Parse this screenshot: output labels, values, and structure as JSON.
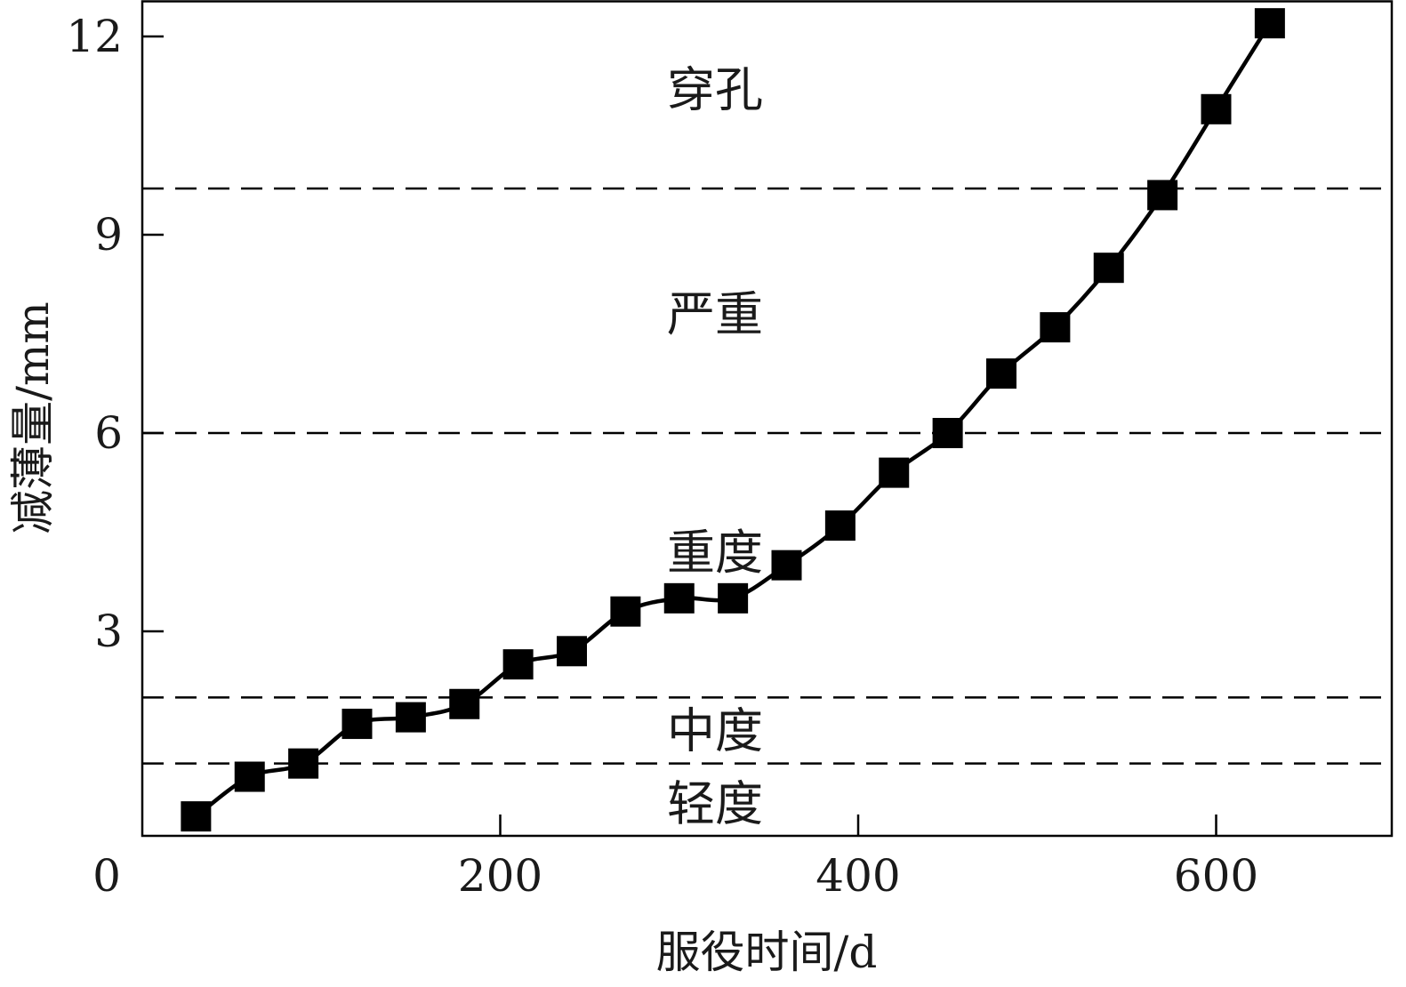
{
  "chart_data": {
    "type": "line",
    "title": "",
    "xlabel": "服役时间/d",
    "ylabel": "减薄量/mm",
    "xlim": [
      0,
      700
    ],
    "ylim": [
      -0.2,
      12.5
    ],
    "x_ticks": [
      0,
      200,
      400,
      600
    ],
    "y_ticks": [
      3,
      6,
      9,
      12
    ],
    "x_tick_labels": [
      "0",
      "200",
      "400",
      "600"
    ],
    "y_tick_labels": [
      "3",
      "6",
      "9",
      "12"
    ],
    "grid": false,
    "series": [
      {
        "name": "",
        "color": "#000000",
        "marker": "square",
        "points": [
          [
            30,
            0.2
          ],
          [
            60,
            0.8
          ],
          [
            90,
            1.0
          ],
          [
            120,
            1.6
          ],
          [
            150,
            1.7
          ],
          [
            180,
            1.9
          ],
          [
            210,
            2.5
          ],
          [
            240,
            2.7
          ],
          [
            270,
            3.3
          ],
          [
            300,
            3.5
          ],
          [
            330,
            3.5
          ],
          [
            360,
            4.0
          ],
          [
            390,
            4.6
          ],
          [
            420,
            5.4
          ],
          [
            450,
            6.0
          ],
          [
            480,
            6.9
          ],
          [
            510,
            7.6
          ],
          [
            540,
            8.5
          ],
          [
            570,
            9.6
          ],
          [
            600,
            10.9
          ],
          [
            630,
            12.2
          ]
        ]
      }
    ],
    "thresholds": [
      1.0,
      2.0,
      6.0,
      9.7
    ],
    "zones": [
      {
        "label": "轻度",
        "y": 0.4
      },
      {
        "label": "中度",
        "y": 1.5
      },
      {
        "label": "重度",
        "y": 4.2
      },
      {
        "label": "严重",
        "y": 7.8
      },
      {
        "label": "穿孔",
        "y": 11.2
      }
    ],
    "zone_label_x": 320
  }
}
